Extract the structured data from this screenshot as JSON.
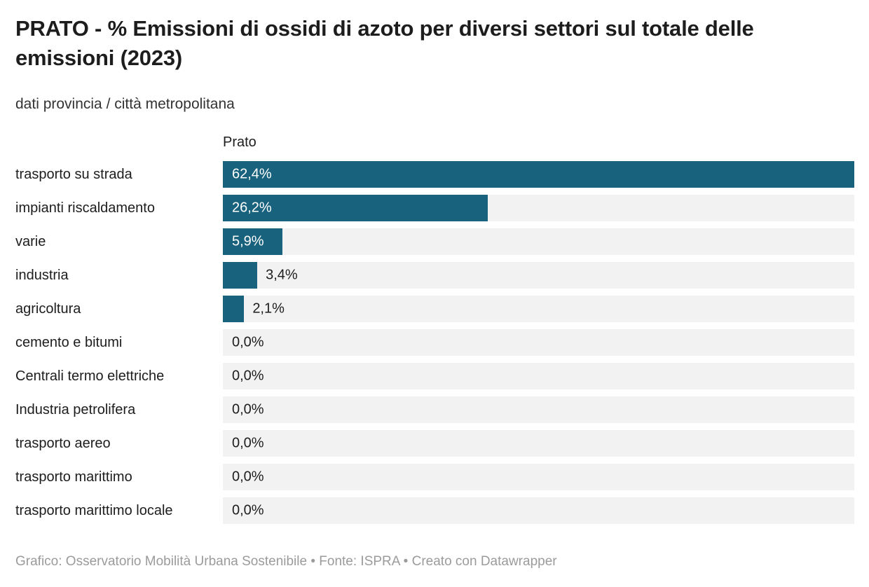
{
  "header": {
    "title": "PRATO - % Emissioni di ossidi di azoto per diversi settori sul totale delle emissioni (2023)",
    "subtitle": "dati provincia / città metropolitana"
  },
  "footer": {
    "credit": "Grafico: Osservatorio Mobilità Urbana Sostenibile • Fonte: ISPRA • Creato con Datawrapper"
  },
  "colors": {
    "bar": "#18627e",
    "track": "#f2f2f2",
    "value_inside": "#ffffff",
    "value_outside": "#1d1d1d",
    "title_text": "#1d1d1d",
    "subtitle_text": "#333333",
    "footer_text": "#9b9b9b"
  },
  "chart_data": {
    "type": "bar",
    "orientation": "horizontal",
    "title": "PRATO - % Emissioni di ossidi di azoto per diversi settori sul totale delle emissioni (2023)",
    "subtitle": "dati provincia / città metropolitana",
    "series_header": "Prato",
    "categories": [
      "trasporto su strada",
      "impianti riscaldamento",
      "varie",
      "industria",
      "agricoltura",
      "cemento e bitumi",
      "Centrali termo elettriche",
      "Industria petrolifera",
      "trasporto aereo",
      "trasporto marittimo",
      "trasporto marittimo locale"
    ],
    "values": [
      62.4,
      26.2,
      5.9,
      3.4,
      2.1,
      0.0,
      0.0,
      0.0,
      0.0,
      0.0,
      0.0
    ],
    "value_labels": [
      "62,4%",
      "26,2%",
      "5,9%",
      "3,4%",
      "2,1%",
      "0,0%",
      "0,0%",
      "0,0%",
      "0,0%",
      "0,0%",
      "0,0%"
    ],
    "unit": "%",
    "xlim": [
      0,
      62.4
    ],
    "grid": false,
    "legend": false
  }
}
